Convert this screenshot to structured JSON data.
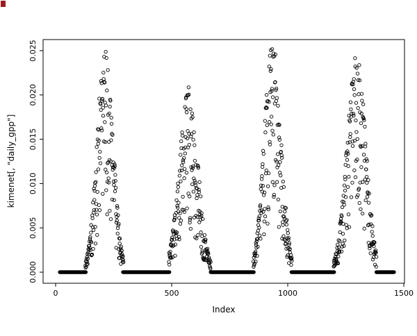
{
  "chart_data": {
    "type": "scatter",
    "title": "",
    "xlabel": "Index",
    "ylabel": "kimenet[, \"daily_gpp\"]",
    "marker": "open-circle",
    "point_color": "#000000",
    "background": "#ffffff",
    "grid": false,
    "legend": null,
    "xlim": [
      -54,
      1503
    ],
    "ylim": [
      -0.00125,
      0.02625
    ],
    "xticks": [
      0,
      500,
      1000,
      1500
    ],
    "xtick_labels": [
      "0",
      "500",
      "1000",
      "1500"
    ],
    "yticks": [
      0,
      0.005,
      0.01,
      0.015,
      0.02,
      0.025
    ],
    "ytick_labels": [
      "0.000",
      "0.005",
      "0.010",
      "0.015",
      "0.020",
      "0.025"
    ],
    "n_points_approx": 1460,
    "seed": 42,
    "zero_value": 0.0,
    "zero_runs": [
      [
        18,
        130
      ],
      [
        290,
        490
      ],
      [
        668,
        854
      ],
      [
        1016,
        1200
      ],
      [
        1382,
        1458
      ]
    ],
    "seasons": [
      {
        "start": 128,
        "end": 292,
        "peak_x": 213,
        "sigma": 34,
        "peak_y": 0.0252
      },
      {
        "start": 488,
        "end": 668,
        "peak_x": 573,
        "sigma": 40,
        "peak_y": 0.0202
      },
      {
        "start": 852,
        "end": 1018,
        "peak_x": 935,
        "sigma": 36,
        "peak_y": 0.0253
      },
      {
        "start": 1198,
        "end": 1382,
        "peak_x": 1295,
        "sigma": 40,
        "peak_y": 0.0246
      }
    ],
    "noise": {
      "floor_frac": 0.75,
      "power": 1.6,
      "jitter": 0.08,
      "dormant_below": 0.0003
    }
  }
}
